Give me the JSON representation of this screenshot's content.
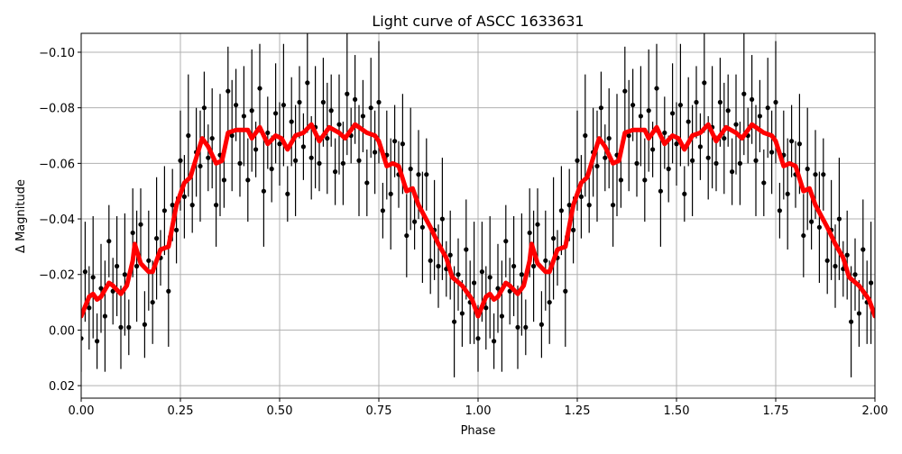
{
  "chart_data": {
    "type": "scatter",
    "title": "Light curve of ASCC 1633631",
    "xlabel": "Phase",
    "ylabel": "Δ Magnitude",
    "xlim": [
      0,
      2
    ],
    "ylim": [
      0.0245,
      -0.1068
    ],
    "y_inverted": true,
    "grid": true,
    "x_ticks": [
      "0.00",
      "0.25",
      "0.50",
      "0.75",
      "1.00",
      "1.25",
      "1.50",
      "1.75",
      "2.00"
    ],
    "x_tick_values": [
      0,
      0.25,
      0.5,
      0.75,
      1,
      1.25,
      1.5,
      1.75,
      2
    ],
    "y_ticks": [
      "−0.10",
      "−0.08",
      "−0.06",
      "−0.04",
      "−0.02",
      "0.00",
      "0.02"
    ],
    "y_tick_values": [
      -0.1,
      -0.08,
      -0.06,
      -0.04,
      -0.02,
      0.0,
      0.02
    ],
    "phase_repeated": true,
    "colors": {
      "points": "#000000",
      "model": "#ff0000",
      "grid": "#b0b0b0"
    },
    "series": [
      {
        "kind": "errorbar-points",
        "points": [
          [
            0.0,
            0.003,
            0.012
          ],
          [
            0.01,
            -0.021,
            0.018
          ],
          [
            0.02,
            -0.008,
            0.015
          ],
          [
            0.03,
            -0.019,
            0.022
          ],
          [
            0.04,
            0.004,
            0.01
          ],
          [
            0.05,
            -0.015,
            0.016
          ],
          [
            0.06,
            -0.005,
            0.02
          ],
          [
            0.07,
            -0.032,
            0.013
          ],
          [
            0.08,
            -0.014,
            0.012
          ],
          [
            0.09,
            -0.023,
            0.018
          ],
          [
            0.1,
            -0.001,
            0.015
          ],
          [
            0.11,
            -0.02,
            0.022
          ],
          [
            0.12,
            -0.001,
            0.01
          ],
          [
            0.13,
            -0.035,
            0.016
          ],
          [
            0.14,
            -0.023,
            0.02
          ],
          [
            0.15,
            -0.038,
            0.013
          ],
          [
            0.16,
            -0.002,
            0.012
          ],
          [
            0.17,
            -0.025,
            0.018
          ],
          [
            0.18,
            -0.01,
            0.015
          ],
          [
            0.19,
            -0.033,
            0.022
          ],
          [
            0.2,
            -0.026,
            0.01
          ],
          [
            0.21,
            -0.043,
            0.016
          ],
          [
            0.22,
            -0.014,
            0.02
          ],
          [
            0.23,
            -0.045,
            0.013
          ],
          [
            0.24,
            -0.036,
            0.012
          ],
          [
            0.25,
            -0.061,
            0.018
          ],
          [
            0.26,
            -0.048,
            0.015
          ],
          [
            0.27,
            -0.07,
            0.022
          ],
          [
            0.28,
            -0.045,
            0.01
          ],
          [
            0.29,
            -0.064,
            0.016
          ],
          [
            0.3,
            -0.059,
            0.02
          ],
          [
            0.31,
            -0.08,
            0.013
          ],
          [
            0.32,
            -0.062,
            0.012
          ],
          [
            0.33,
            -0.069,
            0.018
          ],
          [
            0.34,
            -0.045,
            0.015
          ],
          [
            0.35,
            -0.063,
            0.022
          ],
          [
            0.36,
            -0.054,
            0.01
          ],
          [
            0.37,
            -0.086,
            0.016
          ],
          [
            0.38,
            -0.07,
            0.02
          ],
          [
            0.39,
            -0.081,
            0.013
          ],
          [
            0.4,
            -0.06,
            0.012
          ],
          [
            0.41,
            -0.077,
            0.018
          ],
          [
            0.42,
            -0.054,
            0.015
          ],
          [
            0.43,
            -0.079,
            0.022
          ],
          [
            0.44,
            -0.065,
            0.01
          ],
          [
            0.45,
            -0.087,
            0.016
          ],
          [
            0.46,
            -0.05,
            0.02
          ],
          [
            0.47,
            -0.071,
            0.013
          ],
          [
            0.48,
            -0.058,
            0.012
          ],
          [
            0.49,
            -0.078,
            0.018
          ],
          [
            0.5,
            -0.067,
            0.015
          ],
          [
            0.51,
            -0.081,
            0.022
          ],
          [
            0.52,
            -0.049,
            0.01
          ],
          [
            0.53,
            -0.075,
            0.016
          ],
          [
            0.54,
            -0.061,
            0.02
          ],
          [
            0.55,
            -0.082,
            0.013
          ],
          [
            0.56,
            -0.066,
            0.012
          ],
          [
            0.57,
            -0.089,
            0.018
          ],
          [
            0.58,
            -0.062,
            0.015
          ],
          [
            0.59,
            -0.073,
            0.022
          ],
          [
            0.6,
            -0.06,
            0.01
          ],
          [
            0.61,
            -0.082,
            0.016
          ],
          [
            0.62,
            -0.069,
            0.02
          ],
          [
            0.63,
            -0.079,
            0.013
          ],
          [
            0.64,
            -0.057,
            0.012
          ],
          [
            0.65,
            -0.074,
            0.018
          ],
          [
            0.66,
            -0.06,
            0.015
          ],
          [
            0.67,
            -0.085,
            0.022
          ],
          [
            0.68,
            -0.07,
            0.01
          ],
          [
            0.69,
            -0.083,
            0.016
          ],
          [
            0.7,
            -0.061,
            0.02
          ],
          [
            0.71,
            -0.077,
            0.013
          ],
          [
            0.72,
            -0.053,
            0.012
          ],
          [
            0.73,
            -0.08,
            0.018
          ],
          [
            0.74,
            -0.064,
            0.015
          ],
          [
            0.75,
            -0.082,
            0.022
          ],
          [
            0.76,
            -0.043,
            0.01
          ],
          [
            0.77,
            -0.063,
            0.016
          ],
          [
            0.78,
            -0.049,
            0.02
          ],
          [
            0.79,
            -0.068,
            0.013
          ],
          [
            0.8,
            -0.056,
            0.012
          ],
          [
            0.81,
            -0.067,
            0.018
          ],
          [
            0.82,
            -0.034,
            0.015
          ],
          [
            0.83,
            -0.058,
            0.022
          ],
          [
            0.84,
            -0.039,
            0.01
          ],
          [
            0.85,
            -0.056,
            0.016
          ],
          [
            0.86,
            -0.037,
            0.02
          ],
          [
            0.87,
            -0.056,
            0.013
          ],
          [
            0.88,
            -0.025,
            0.012
          ],
          [
            0.89,
            -0.036,
            0.018
          ],
          [
            0.9,
            -0.023,
            0.015
          ],
          [
            0.91,
            -0.04,
            0.022
          ],
          [
            0.92,
            -0.022,
            0.01
          ],
          [
            0.93,
            -0.027,
            0.016
          ],
          [
            0.94,
            -0.003,
            0.02
          ],
          [
            0.95,
            -0.02,
            0.013
          ],
          [
            0.96,
            -0.006,
            0.012
          ],
          [
            0.97,
            -0.029,
            0.018
          ],
          [
            0.98,
            -0.01,
            0.015
          ],
          [
            0.99,
            -0.017,
            0.022
          ]
        ]
      },
      {
        "kind": "model-line",
        "points": [
          [
            0.0,
            -0.005
          ],
          [
            0.02,
            -0.012
          ],
          [
            0.03,
            -0.013
          ],
          [
            0.04,
            -0.011
          ],
          [
            0.05,
            -0.012
          ],
          [
            0.07,
            -0.017
          ],
          [
            0.08,
            -0.016
          ],
          [
            0.1,
            -0.013
          ],
          [
            0.115,
            -0.016
          ],
          [
            0.13,
            -0.025
          ],
          [
            0.135,
            -0.031
          ],
          [
            0.15,
            -0.024
          ],
          [
            0.17,
            -0.021
          ],
          [
            0.18,
            -0.021
          ],
          [
            0.2,
            -0.029
          ],
          [
            0.22,
            -0.03
          ],
          [
            0.24,
            -0.045
          ],
          [
            0.26,
            -0.053
          ],
          [
            0.275,
            -0.055
          ],
          [
            0.29,
            -0.062
          ],
          [
            0.305,
            -0.069
          ],
          [
            0.32,
            -0.066
          ],
          [
            0.34,
            -0.06
          ],
          [
            0.355,
            -0.061
          ],
          [
            0.37,
            -0.071
          ],
          [
            0.39,
            -0.072
          ],
          [
            0.42,
            -0.072
          ],
          [
            0.43,
            -0.069
          ],
          [
            0.45,
            -0.073
          ],
          [
            0.47,
            -0.067
          ],
          [
            0.49,
            -0.07
          ],
          [
            0.505,
            -0.069
          ],
          [
            0.52,
            -0.065
          ],
          [
            0.54,
            -0.07
          ],
          [
            0.56,
            -0.071
          ],
          [
            0.58,
            -0.074
          ],
          [
            0.6,
            -0.068
          ],
          [
            0.625,
            -0.073
          ],
          [
            0.65,
            -0.071
          ],
          [
            0.665,
            -0.069
          ],
          [
            0.69,
            -0.074
          ],
          [
            0.72,
            -0.071
          ],
          [
            0.74,
            -0.07
          ],
          [
            0.75,
            -0.068
          ],
          [
            0.77,
            -0.059
          ],
          [
            0.785,
            -0.06
          ],
          [
            0.8,
            -0.059
          ],
          [
            0.82,
            -0.05
          ],
          [
            0.835,
            -0.051
          ],
          [
            0.85,
            -0.045
          ],
          [
            0.88,
            -0.037
          ],
          [
            0.9,
            -0.031
          ],
          [
            0.92,
            -0.026
          ],
          [
            0.935,
            -0.019
          ],
          [
            0.96,
            -0.016
          ],
          [
            0.985,
            -0.011
          ],
          [
            1.0,
            -0.005
          ]
        ]
      }
    ]
  }
}
